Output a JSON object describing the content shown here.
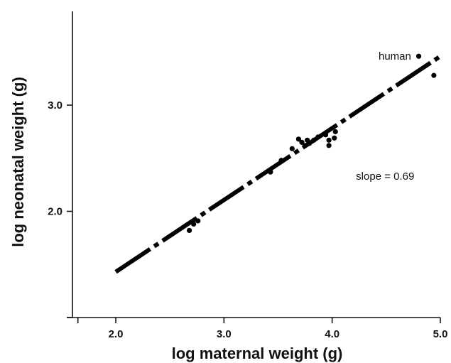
{
  "chart_data": {
    "type": "scatter",
    "xlabel": "log maternal weight (g)",
    "ylabel": "log neonatal weight (g)",
    "xlim": [
      1.6,
      5.0
    ],
    "ylim": [
      1.0,
      3.9
    ],
    "x_ticks": [
      {
        "value": 2.0,
        "label": "2.0"
      },
      {
        "value": 3.0,
        "label": "3.0"
      },
      {
        "value": 4.0,
        "label": "4.0"
      },
      {
        "value": 5.0,
        "label": "5.0"
      }
    ],
    "x_minor_ticks": [
      1.65
    ],
    "y_ticks": [
      {
        "value": 1.0,
        "label": ""
      },
      {
        "value": 2.0,
        "label": "2.0"
      },
      {
        "value": 3.0,
        "label": "3.0"
      }
    ],
    "grid": false,
    "fit_line": {
      "x": [
        2.0,
        5.0
      ],
      "y": [
        1.43,
        3.46
      ]
    },
    "points": [
      {
        "x": 2.68,
        "y": 1.82
      },
      {
        "x": 2.72,
        "y": 1.88
      },
      {
        "x": 2.76,
        "y": 1.91
      },
      {
        "x": 3.43,
        "y": 2.37
      },
      {
        "x": 3.53,
        "y": 2.48
      },
      {
        "x": 3.63,
        "y": 2.59
      },
      {
        "x": 3.69,
        "y": 2.68
      },
      {
        "x": 3.72,
        "y": 2.65
      },
      {
        "x": 3.75,
        "y": 2.62
      },
      {
        "x": 3.77,
        "y": 2.67
      },
      {
        "x": 3.79,
        "y": 2.64
      },
      {
        "x": 3.83,
        "y": 2.67
      },
      {
        "x": 3.87,
        "y": 2.7
      },
      {
        "x": 3.94,
        "y": 2.72
      },
      {
        "x": 3.97,
        "y": 2.62
      },
      {
        "x": 3.97,
        "y": 2.67
      },
      {
        "x": 4.02,
        "y": 2.69
      },
      {
        "x": 4.03,
        "y": 2.75
      },
      {
        "x": 4.8,
        "y": 3.46
      },
      {
        "x": 4.94,
        "y": 3.28
      }
    ],
    "annotations": [
      {
        "text": "human",
        "x": 4.73,
        "y": 3.46,
        "anchor": "end"
      },
      {
        "text": "slope = 0.69",
        "x": 4.22,
        "y": 2.33,
        "anchor": "start"
      }
    ]
  }
}
